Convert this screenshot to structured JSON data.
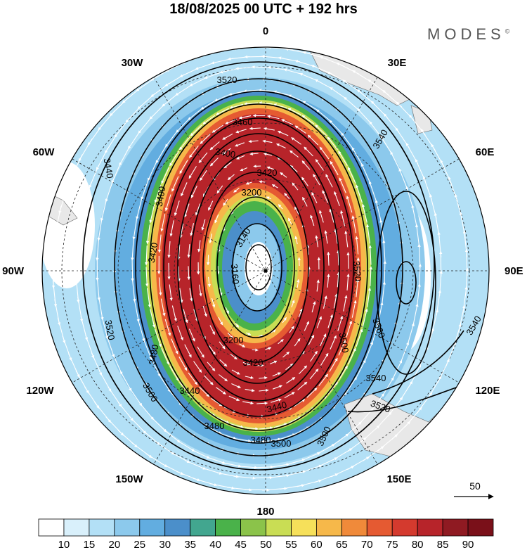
{
  "header": {
    "title": "18/08/2025  00 UTC  + 192 hrs",
    "brand": "MODES",
    "brand_mark": "©"
  },
  "map": {
    "projection": "polar-stereographic-south",
    "center": "0",
    "longitude_labels": {
      "top": "0",
      "right": "90E",
      "bottom": "180",
      "left": "90W",
      "upper_left_30": "30W",
      "upper_left_60": "60W",
      "upper_right_30": "30E",
      "upper_right_60": "60E",
      "lower_left_120": "120W",
      "lower_left_150": "150W",
      "lower_right_120": "120E",
      "lower_right_150": "150E"
    },
    "contour_labels": [
      "3520",
      "3460",
      "3400",
      "3200",
      "3140",
      "3160",
      "3200",
      "3440",
      "3480",
      "3500",
      "3520",
      "3540",
      "3560",
      "3500",
      "3520",
      "3540",
      "3480",
      "3500",
      "3520",
      "3540",
      "3500",
      "3480",
      "3400",
      "3420",
      "3420",
      "3440",
      "3420",
      "3440"
    ],
    "colors": {
      "wind_10": "#ffffff",
      "wind_15": "#d9f0fb",
      "wind_20": "#b3e0f6",
      "wind_25": "#8cc9ec",
      "wind_30": "#62ade0",
      "wind_35": "#4b8fca",
      "wind_40": "#42a68f",
      "wind_45": "#4ab24a",
      "wind_50": "#8bc34a",
      "wind_55": "#c9dd54",
      "wind_60": "#f6e05a",
      "wind_65": "#f6b84a",
      "wind_70": "#f08a3a",
      "wind_75": "#e55a32",
      "wind_80": "#d43a2e",
      "wind_85": "#b7242a",
      "wind_90": "#8f1a22",
      "land": "#e8e8e8",
      "contour": "#000000",
      "vector": "#ffffff"
    }
  },
  "reference_vector": {
    "label": "50"
  },
  "colorbar": {
    "ticks": [
      "10",
      "15",
      "20",
      "25",
      "30",
      "35",
      "40",
      "45",
      "50",
      "55",
      "60",
      "65",
      "70",
      "75",
      "80",
      "85",
      "90"
    ],
    "colors": [
      "#ffffff",
      "#d9f0fb",
      "#b3e0f6",
      "#8cc9ec",
      "#62ade0",
      "#4b8fca",
      "#42a68f",
      "#4ab24a",
      "#8bc34a",
      "#c9dd54",
      "#f6e05a",
      "#f6b84a",
      "#f08a3a",
      "#e55a32",
      "#d43a2e",
      "#b7242a",
      "#8f1a22",
      "#7a1019"
    ]
  }
}
